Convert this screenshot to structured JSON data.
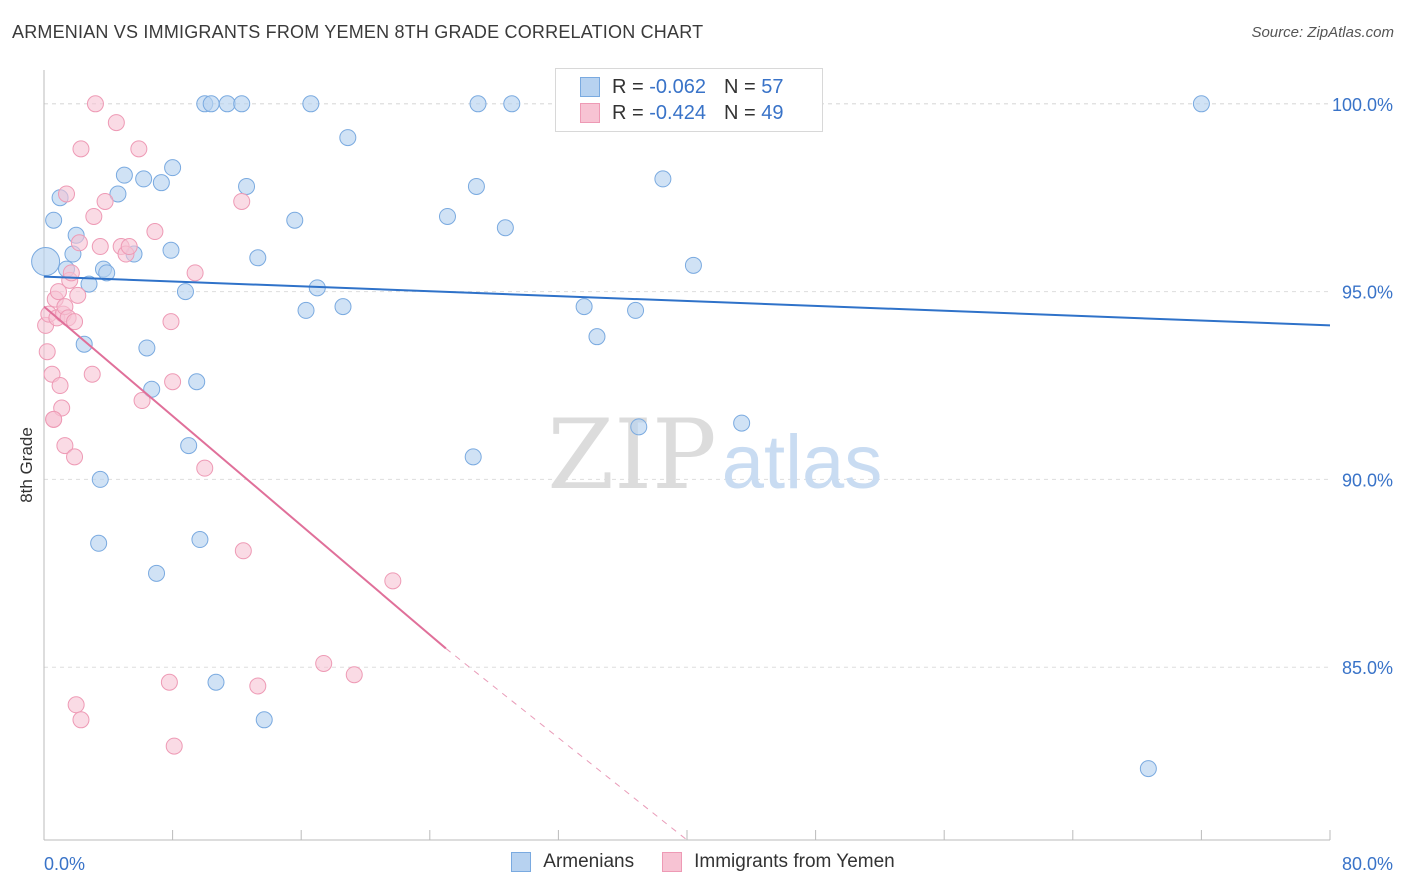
{
  "title": "ARMENIAN VS IMMIGRANTS FROM YEMEN 8TH GRADE CORRELATION CHART",
  "source": "Source: ZipAtlas.com",
  "watermark": {
    "zip": "ZIP",
    "atlas": "atlas"
  },
  "colors": {
    "blue_fill": "#b7d2f0",
    "blue_stroke": "#7aaae0",
    "blue_line": "#2f72c9",
    "pink_fill": "#f7c3d3",
    "pink_stroke": "#ee9ab5",
    "pink_line": "#e0709a",
    "tick_label": "#3973c8",
    "grid": "#dddddd"
  },
  "legend": {
    "rows": [
      {
        "r_label": "R =",
        "r_value": "-0.062",
        "n_label": "N =",
        "n_value": "57"
      },
      {
        "r_label": "R =",
        "r_value": "-0.424",
        "n_label": "N =",
        "n_value": "49"
      }
    ]
  },
  "bottom_legend": {
    "series1": "Armenians",
    "series2": "Immigrants from Yemen"
  },
  "chart_data": {
    "type": "scatter",
    "title": "ARMENIAN VS IMMIGRANTS FROM YEMEN 8TH GRADE CORRELATION CHART",
    "xlabel": "",
    "ylabel": "8th Grade",
    "xlim": [
      0,
      80
    ],
    "ylim": [
      80.4,
      100.9
    ],
    "x_tick_labels": [
      "0.0%",
      "80.0%"
    ],
    "y_ticks": [
      85,
      90,
      95,
      100
    ],
    "y_tick_labels": [
      "85.0%",
      "90.0%",
      "95.0%",
      "100.0%"
    ],
    "grid": true,
    "legend_position": "top-center",
    "series": [
      {
        "name": "Armenians",
        "trend": {
          "x": [
            0,
            80
          ],
          "y": [
            95.4,
            94.1
          ]
        },
        "points": [
          [
            0.1,
            95.8
          ],
          [
            0.6,
            96.9
          ],
          [
            1.0,
            97.5
          ],
          [
            1.4,
            95.6
          ],
          [
            1.8,
            96.0
          ],
          [
            2.0,
            96.5
          ],
          [
            2.8,
            95.2
          ],
          [
            2.5,
            93.6
          ],
          [
            3.7,
            95.6
          ],
          [
            3.9,
            95.5
          ],
          [
            4.6,
            97.6
          ],
          [
            5.0,
            98.1
          ],
          [
            5.6,
            96.0
          ],
          [
            6.2,
            98.0
          ],
          [
            7.3,
            97.9
          ],
          [
            7.9,
            96.1
          ],
          [
            8.0,
            98.3
          ],
          [
            8.8,
            95.0
          ],
          [
            9.0,
            90.9
          ],
          [
            9.5,
            92.6
          ],
          [
            9.7,
            88.4
          ],
          [
            10.0,
            100.0
          ],
          [
            10.4,
            100.0
          ],
          [
            10.7,
            84.6
          ],
          [
            11.4,
            100.0
          ],
          [
            12.3,
            100.0
          ],
          [
            12.6,
            97.8
          ],
          [
            13.3,
            95.9
          ],
          [
            13.7,
            83.6
          ],
          [
            15.6,
            96.9
          ],
          [
            16.6,
            100.0
          ],
          [
            16.3,
            94.5
          ],
          [
            17.0,
            95.1
          ],
          [
            18.6,
            94.6
          ],
          [
            18.9,
            99.1
          ],
          [
            6.4,
            93.5
          ],
          [
            6.7,
            92.4
          ],
          [
            7.0,
            87.5
          ],
          [
            3.5,
            90.0
          ],
          [
            3.4,
            88.3
          ],
          [
            25.1,
            97.0
          ],
          [
            26.7,
            90.6
          ],
          [
            26.9,
            97.8
          ],
          [
            27.0,
            100.0
          ],
          [
            28.7,
            96.7
          ],
          [
            29.1,
            100.0
          ],
          [
            33.6,
            94.6
          ],
          [
            34.4,
            93.8
          ],
          [
            36.8,
            94.5
          ],
          [
            37.0,
            91.4
          ],
          [
            38.5,
            98.0
          ],
          [
            40.4,
            95.7
          ],
          [
            43.4,
            91.5
          ],
          [
            33.0,
            100.1
          ],
          [
            68.7,
            82.3
          ],
          [
            72.0,
            100.0
          ],
          [
            32.5,
            100.0
          ]
        ]
      },
      {
        "name": "Immigrants from Yemen",
        "trend": {
          "x": [
            0,
            25
          ],
          "y": [
            94.6,
            85.5
          ]
        },
        "trend_dashed_extension": {
          "x": [
            25,
            40
          ],
          "y": [
            85.5,
            80.4
          ]
        },
        "points": [
          [
            0.1,
            94.1
          ],
          [
            0.2,
            93.4
          ],
          [
            0.3,
            94.4
          ],
          [
            0.5,
            92.8
          ],
          [
            0.6,
            91.6
          ],
          [
            0.7,
            94.8
          ],
          [
            0.8,
            94.3
          ],
          [
            0.9,
            95.0
          ],
          [
            1.0,
            92.5
          ],
          [
            1.1,
            91.9
          ],
          [
            1.2,
            94.4
          ],
          [
            1.3,
            94.6
          ],
          [
            1.4,
            97.6
          ],
          [
            1.5,
            94.3
          ],
          [
            1.6,
            95.3
          ],
          [
            1.7,
            95.5
          ],
          [
            1.9,
            94.2
          ],
          [
            2.1,
            94.9
          ],
          [
            2.2,
            96.3
          ],
          [
            2.3,
            98.8
          ],
          [
            1.3,
            90.9
          ],
          [
            1.9,
            90.6
          ],
          [
            2.0,
            84.0
          ],
          [
            2.3,
            83.6
          ],
          [
            3.0,
            92.8
          ],
          [
            3.1,
            97.0
          ],
          [
            3.2,
            100.0
          ],
          [
            3.5,
            96.2
          ],
          [
            3.8,
            97.4
          ],
          [
            4.5,
            99.5
          ],
          [
            4.8,
            96.2
          ],
          [
            5.1,
            96.0
          ],
          [
            5.3,
            96.2
          ],
          [
            5.9,
            98.8
          ],
          [
            6.1,
            92.1
          ],
          [
            6.9,
            96.6
          ],
          [
            7.8,
            84.6
          ],
          [
            7.9,
            94.2
          ],
          [
            8.0,
            92.6
          ],
          [
            8.1,
            82.9
          ],
          [
            9.4,
            95.5
          ],
          [
            10.0,
            90.3
          ],
          [
            12.3,
            97.4
          ],
          [
            12.4,
            88.1
          ],
          [
            13.3,
            84.5
          ],
          [
            17.4,
            85.1
          ],
          [
            19.3,
            84.8
          ],
          [
            21.7,
            87.3
          ],
          [
            0.6,
            91.6
          ]
        ]
      }
    ]
  }
}
